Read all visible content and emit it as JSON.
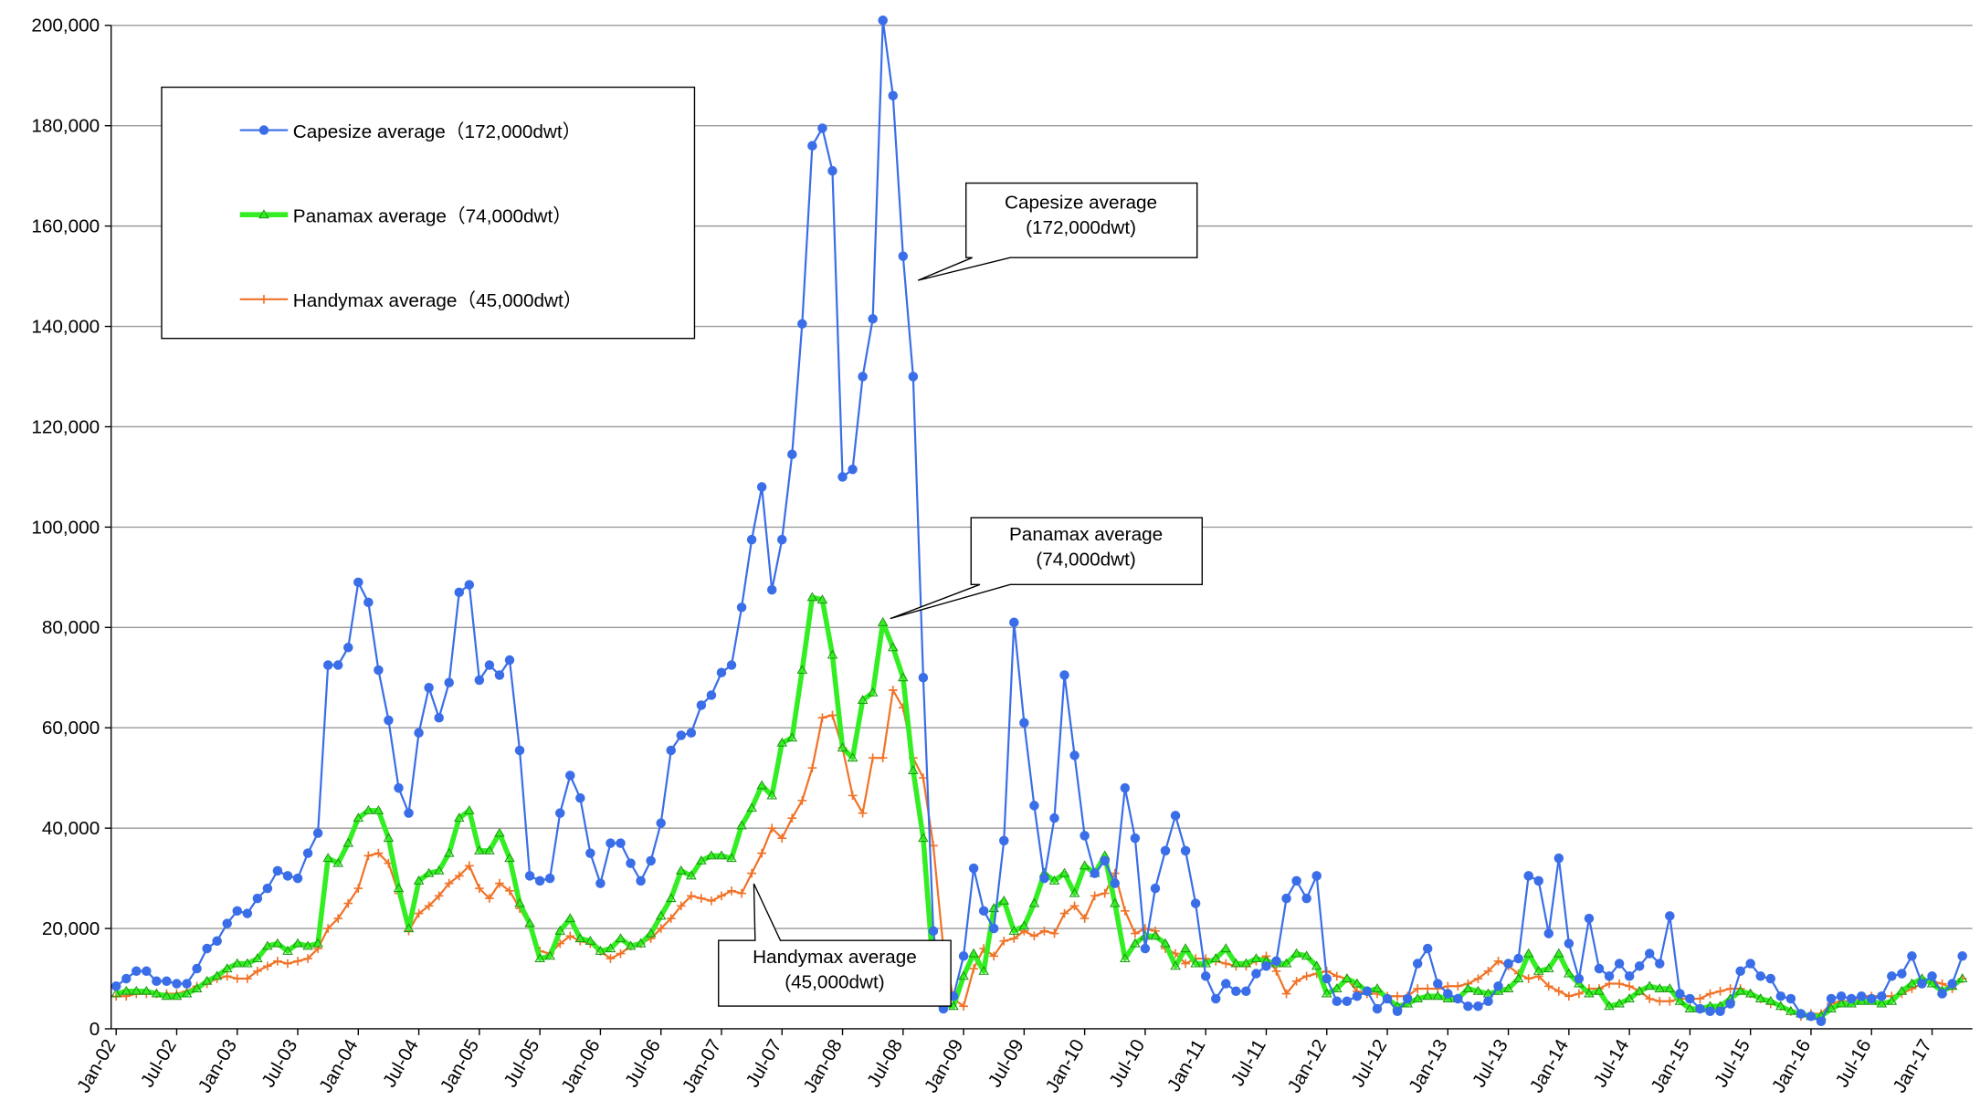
{
  "chart_data": {
    "type": "line",
    "categories": [
      "Jan-02",
      null,
      null,
      null,
      null,
      null,
      "Jul-02",
      null,
      null,
      null,
      null,
      null,
      "Jan-03",
      null,
      null,
      null,
      null,
      null,
      "Jul-03",
      null,
      null,
      null,
      null,
      null,
      "Jan-04",
      null,
      null,
      null,
      null,
      null,
      "Jul-04",
      null,
      null,
      null,
      null,
      null,
      "Jan-05",
      null,
      null,
      null,
      null,
      null,
      "Jul-05",
      null,
      null,
      null,
      null,
      null,
      "Jan-06",
      null,
      null,
      null,
      null,
      null,
      "Jul-06",
      null,
      null,
      null,
      null,
      null,
      "Jan-07",
      null,
      null,
      null,
      null,
      null,
      "Jul-07",
      null,
      null,
      null,
      null,
      null,
      "Jan-08",
      null,
      null,
      null,
      null,
      null,
      "Jul-08",
      null,
      null,
      null,
      null,
      null,
      "Jan-09",
      null,
      null,
      null,
      null,
      null,
      "Jul-09",
      null,
      null,
      null,
      null,
      null,
      "Jan-10",
      null,
      null,
      null,
      null,
      null,
      "Jul-10",
      null,
      null,
      null,
      null,
      null,
      "Jan-11",
      null,
      null,
      null,
      null,
      null,
      "Jul-11",
      null,
      null,
      null,
      null,
      null,
      "Jan-12",
      null,
      null,
      null,
      null,
      null,
      "Jul-12",
      null,
      null,
      null,
      null,
      null,
      "Jan-13",
      null,
      null,
      null,
      null,
      null,
      "Jul-13",
      null,
      null,
      null,
      null,
      null,
      "Jan-14",
      null,
      null,
      null,
      null,
      null,
      "Jul-14",
      null,
      null,
      null,
      null,
      null,
      "Jan-15",
      null,
      null,
      null,
      null,
      null,
      "Jul-15",
      null,
      null,
      null,
      null,
      null,
      "Jan-16",
      null,
      null,
      null,
      null,
      null,
      "Jul-16",
      null,
      null,
      null,
      null,
      null,
      "Jan-17",
      null,
      null,
      null
    ],
    "series": [
      {
        "name": "Capesize average（172,000dwt）",
        "color": "#3a6ee8",
        "marker": "circle",
        "values": [
          8500,
          10000,
          11500,
          11500,
          9500,
          9500,
          9000,
          9000,
          12000,
          16000,
          17500,
          21000,
          23500,
          23000,
          26000,
          28000,
          31500,
          30500,
          30000,
          35000,
          39000,
          72500,
          72500,
          76000,
          89000,
          85000,
          71500,
          61500,
          48000,
          43000,
          59000,
          68000,
          62000,
          69000,
          87000,
          88500,
          69500,
          72500,
          70500,
          73500,
          55500,
          30500,
          29500,
          30000,
          43000,
          50500,
          46000,
          35000,
          29000,
          37000,
          37000,
          33000,
          29500,
          33500,
          41000,
          55500,
          58500,
          59000,
          64500,
          66500,
          71000,
          72500,
          84000,
          97500,
          108000,
          87500,
          97500,
          114500,
          140500,
          176000,
          179500,
          171000,
          110000,
          111500,
          130000,
          141500,
          201000,
          186000,
          154000,
          130000,
          70000,
          19500,
          4000,
          6500,
          14500,
          32000,
          23500,
          20000,
          37500,
          81000,
          61000,
          44500,
          30000,
          42000,
          70500,
          54500,
          38500,
          31000,
          33500,
          29000,
          48000,
          38000,
          16000,
          28000,
          35500,
          42500,
          35500,
          25000,
          10500,
          6000,
          9000,
          7500,
          7500,
          11000,
          12500,
          13500,
          26000,
          29500,
          26000,
          30500,
          10000,
          5500,
          5500,
          6500,
          7500,
          4000,
          6000,
          3500,
          6000,
          13000,
          16000,
          9000,
          7000,
          6000,
          4500,
          4500,
          5500,
          8500,
          13000,
          14000,
          30500,
          29500,
          19000,
          34000,
          17000,
          10000,
          22000,
          12000,
          10500,
          13000,
          10500,
          12500,
          15000,
          13000,
          22500,
          7000,
          6000,
          4000,
          3500,
          3500,
          5000,
          11500,
          13000,
          10500,
          10000,
          6500,
          6000,
          3000,
          2500,
          1500,
          6000,
          6500,
          6000,
          6500,
          6000,
          6500,
          10500,
          11000,
          14500,
          9000,
          10500,
          7000,
          9000,
          14500
        ]
      },
      {
        "name": "Panamax average（74,000dwt）",
        "color": "#33ee22",
        "marker": "triangle",
        "values": [
          7000,
          7500,
          7500,
          7500,
          7000,
          6500,
          6500,
          7000,
          8000,
          9500,
          10500,
          12000,
          13000,
          13000,
          14000,
          16500,
          17000,
          15500,
          17000,
          16500,
          17000,
          34000,
          33000,
          37000,
          42000,
          43500,
          43500,
          38000,
          28000,
          20000,
          29500,
          31000,
          31500,
          35000,
          42000,
          43500,
          35500,
          35500,
          39000,
          34000,
          25000,
          21000,
          14000,
          14500,
          19500,
          22000,
          18000,
          17500,
          15500,
          16000,
          18000,
          16500,
          17000,
          19000,
          22500,
          26000,
          31500,
          30500,
          33500,
          34500,
          34500,
          34000,
          40500,
          44000,
          48500,
          46500,
          57000,
          58000,
          71500,
          86000,
          85500,
          74500,
          56000,
          54000,
          65500,
          67000,
          81000,
          76000,
          70000,
          51500,
          38000,
          11500,
          5000,
          4500,
          10500,
          15000,
          11500,
          24000,
          25500,
          19500,
          20500,
          25000,
          31000,
          29500,
          31000,
          27000,
          32500,
          31000,
          34500,
          25000,
          14000,
          17000,
          18500,
          18500,
          17000,
          12500,
          16000,
          13000,
          13000,
          14000,
          16000,
          13000,
          13000,
          14000,
          13500,
          13000,
          13000,
          15000,
          14500,
          12500,
          7000,
          8000,
          10000,
          9000,
          7500,
          8000,
          6000,
          4500,
          5000,
          6000,
          6500,
          6500,
          6000,
          6000,
          8000,
          7500,
          7000,
          7500,
          8000,
          10000,
          15000,
          11500,
          12000,
          15000,
          11000,
          9000,
          7000,
          7500,
          4500,
          5000,
          6000,
          7500,
          8500,
          8000,
          8000,
          5500,
          4000,
          4000,
          4500,
          4500,
          6000,
          7500,
          7000,
          6000,
          5500,
          4500,
          3500,
          3000,
          2500,
          2500,
          4000,
          5000,
          5000,
          5500,
          5500,
          5000,
          5500,
          7500,
          9000,
          10000,
          9000,
          7500,
          8500,
          10000
        ]
      },
      {
        "name": "Handymax average（45,000dwt）",
        "color": "#f07328",
        "marker": "plus",
        "values": [
          6500,
          6500,
          7000,
          7000,
          7000,
          7000,
          7000,
          7500,
          8500,
          9000,
          10000,
          10500,
          10000,
          10000,
          11500,
          12500,
          13500,
          13000,
          13500,
          14000,
          16000,
          20000,
          22000,
          25000,
          28000,
          34500,
          35000,
          33000,
          27000,
          19500,
          23000,
          24500,
          26500,
          29000,
          30500,
          32500,
          28000,
          26000,
          29000,
          27500,
          24000,
          20500,
          15500,
          15000,
          17000,
          18500,
          17500,
          17000,
          15500,
          14000,
          15000,
          16500,
          17000,
          18000,
          20000,
          22000,
          24500,
          26500,
          26000,
          25500,
          26500,
          27500,
          27000,
          31000,
          35000,
          40000,
          38000,
          42000,
          45500,
          52000,
          62000,
          62500,
          56000,
          46500,
          43000,
          54000,
          54000,
          67500,
          64000,
          54000,
          50000,
          36500,
          16000,
          6000,
          4500,
          12000,
          16000,
          14500,
          17500,
          18000,
          19500,
          18500,
          19500,
          19000,
          23000,
          24500,
          22000,
          26500,
          27000,
          31000,
          23500,
          19000,
          20000,
          19500,
          16000,
          15000,
          13000,
          14000,
          14000,
          13500,
          13000,
          12500,
          12500,
          13500,
          14500,
          11500,
          7000,
          9500,
          10500,
          11000,
          11500,
          10500,
          10000,
          7500,
          7000,
          7000,
          6500,
          6500,
          6500,
          8000,
          8000,
          8000,
          8500,
          8500,
          9000,
          10000,
          11500,
          13500,
          12500,
          11000,
          10000,
          10500,
          8500,
          7500,
          6500,
          7000,
          8000,
          8000,
          9000,
          9000,
          8500,
          7500,
          6000,
          5500,
          5500,
          6000,
          6000,
          6000,
          7000,
          7500,
          8000,
          8000,
          7000,
          6000,
          5000,
          4500,
          3500,
          2500,
          3000,
          3000,
          5000,
          5500,
          5500,
          6500,
          6500,
          6500,
          6500,
          7000,
          8000,
          9000,
          9500,
          9000,
          8000,
          10000
        ]
      }
    ],
    "ylim": [
      0,
      200000
    ],
    "yticks": [
      0,
      {
        "value": 20000,
        "label": "20,000"
      },
      {
        "value": 40000,
        "label": "40,000"
      },
      {
        "value": 60000,
        "label": "60,000"
      },
      {
        "value": 80000,
        "label": "80,000"
      },
      {
        "value": 100000,
        "label": "100,000"
      },
      {
        "value": 120000,
        "label": "120,000"
      },
      {
        "value": 140000,
        "label": "140,000"
      },
      {
        "value": 160000,
        "label": "160,000"
      },
      {
        "value": 180000,
        "label": "180,000"
      },
      {
        "value": 200000,
        "label": "200,000"
      }
    ],
    "grid": true,
    "legend": "upper left",
    "annotations": [
      {
        "lines": [
          "Capesize average",
          "(172,000dwt)"
        ]
      },
      {
        "lines": [
          "Panamax average",
          "(74,000dwt)"
        ]
      },
      {
        "lines": [
          "Handymax average",
          "(45,000dwt)"
        ]
      }
    ]
  }
}
